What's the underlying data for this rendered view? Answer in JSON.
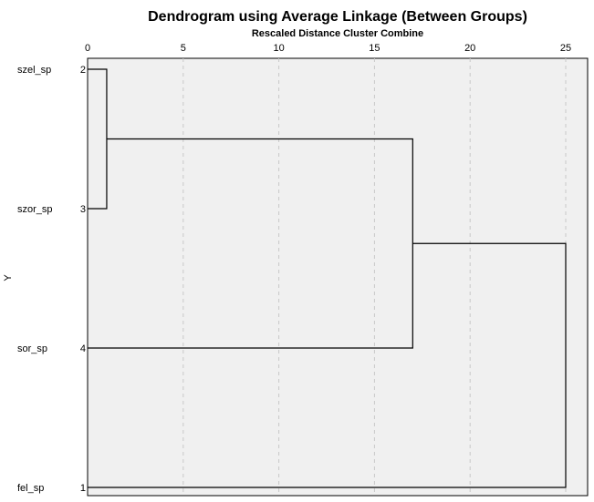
{
  "chart_data": {
    "type": "dendrogram",
    "title": "Dendrogram using Average Linkage (Between Groups)",
    "xlabel": "Rescaled Distance Cluster Combine",
    "ylabel": "Y",
    "xlim": [
      0,
      25
    ],
    "x_ticks": [
      0,
      5,
      10,
      15,
      20,
      25
    ],
    "grid": true,
    "leaves": [
      {
        "name": "szel_sp",
        "id": "2"
      },
      {
        "name": "szor_sp",
        "id": "3"
      },
      {
        "name": "sor_sp",
        "id": "4"
      },
      {
        "name": "fel_sp",
        "id": "1"
      }
    ],
    "merges": [
      {
        "left": "2",
        "right": "3",
        "distance": 1
      },
      {
        "left": "2,3",
        "right": "4",
        "distance": 17
      },
      {
        "left": "2,3,4",
        "right": "1",
        "distance": 25
      }
    ],
    "colors": {
      "plot_background": "#f0f0f0",
      "branch": "#000000",
      "grid": "#c8c8c8"
    }
  }
}
